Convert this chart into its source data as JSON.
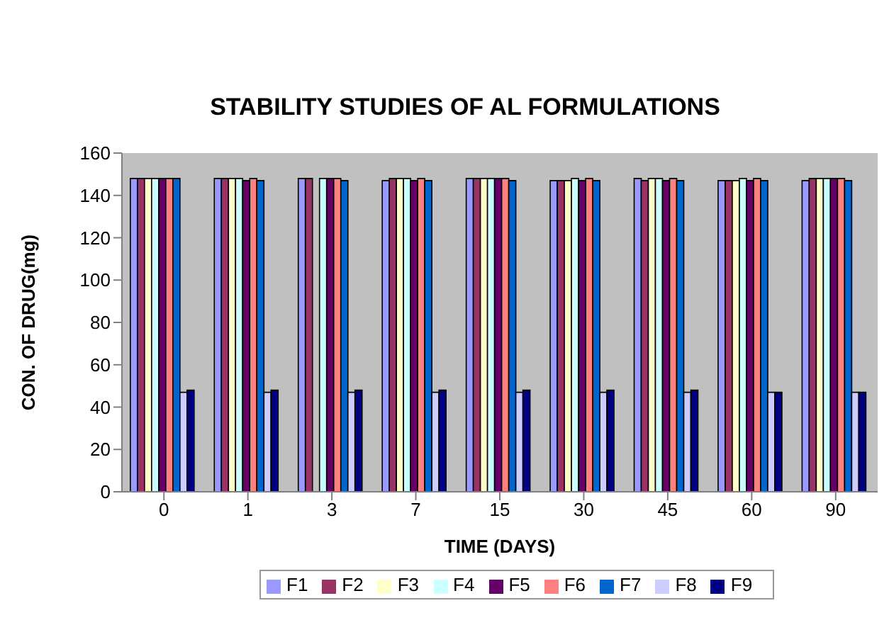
{
  "chart_data": {
    "type": "bar",
    "title": "STABILITY STUDIES OF AL FORMULATIONS",
    "xlabel": "TIME (DAYS)",
    "ylabel": "CON. OF DRUG(mg)",
    "categories": [
      "0",
      "1",
      "3",
      "7",
      "15",
      "30",
      "45",
      "60",
      "90"
    ],
    "series": [
      {
        "name": "F1",
        "color": "#9999ff",
        "values": [
          148,
          148,
          148,
          147,
          148,
          147,
          148,
          147,
          147
        ]
      },
      {
        "name": "F2",
        "color": "#993366",
        "values": [
          148,
          148,
          148,
          148,
          148,
          147,
          147,
          147,
          148
        ]
      },
      {
        "name": "F3",
        "color": "#ffffcc",
        "values": [
          148,
          148,
          null,
          148,
          148,
          147,
          148,
          147,
          148
        ]
      },
      {
        "name": "F4",
        "color": "#ccffff",
        "values": [
          148,
          148,
          148,
          148,
          148,
          148,
          148,
          148,
          148
        ]
      },
      {
        "name": "F5",
        "color": "#660066",
        "values": [
          148,
          147,
          148,
          147,
          148,
          147,
          147,
          147,
          148
        ]
      },
      {
        "name": "F6",
        "color": "#ff8080",
        "values": [
          148,
          148,
          148,
          148,
          148,
          148,
          148,
          148,
          148
        ]
      },
      {
        "name": "F7",
        "color": "#0066cc",
        "values": [
          148,
          147,
          147,
          147,
          147,
          147,
          147,
          147,
          147
        ]
      },
      {
        "name": "F8",
        "color": "#ccccff",
        "values": [
          47,
          47,
          47,
          47,
          47,
          47,
          47,
          47,
          47
        ]
      },
      {
        "name": "F9",
        "color": "#000080",
        "values": [
          48,
          48,
          48,
          48,
          48,
          48,
          48,
          47,
          47
        ]
      }
    ],
    "ylim": [
      0,
      160
    ],
    "yticks": [
      0,
      20,
      40,
      60,
      80,
      100,
      120,
      140,
      160
    ],
    "grid": false,
    "legend": "bottom"
  }
}
